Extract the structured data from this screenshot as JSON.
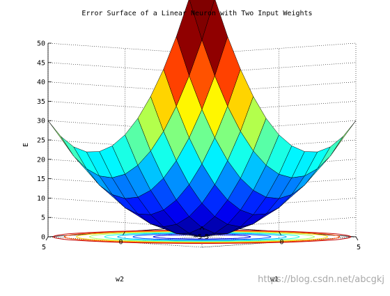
{
  "chart_data": {
    "type": "surface3d",
    "title": "Error Surface of a Linear Neuron with Two Input Weights",
    "xlabel": "w1",
    "ylabel": "w2",
    "zlabel": "E",
    "colormap": "jet",
    "grid": true,
    "contour_below": true,
    "w1_range": [
      -5,
      5
    ],
    "w2_range": [
      -5,
      5
    ],
    "zlim": [
      0,
      50
    ],
    "z_ticks": [
      0,
      5,
      10,
      15,
      20,
      25,
      30,
      35,
      40,
      45,
      50
    ],
    "w1_ticks": [
      -5,
      0,
      5
    ],
    "w2_ticks": [
      -5,
      0,
      5
    ],
    "w1_tick_labels": [
      "−5",
      "0",
      "5"
    ],
    "w2_tick_labels": [
      "−5",
      "0",
      "5"
    ],
    "error_function": {
      "form": "E = a*(w1^2 + w2^2) + b*w1*w2",
      "a": 1.0,
      "b": 0.8
    },
    "grid_steps": 12,
    "contour_levels": [
      3,
      6,
      9,
      12,
      16,
      20,
      24,
      28
    ]
  },
  "watermark": "https://blog.csdn.net/abcgkj"
}
